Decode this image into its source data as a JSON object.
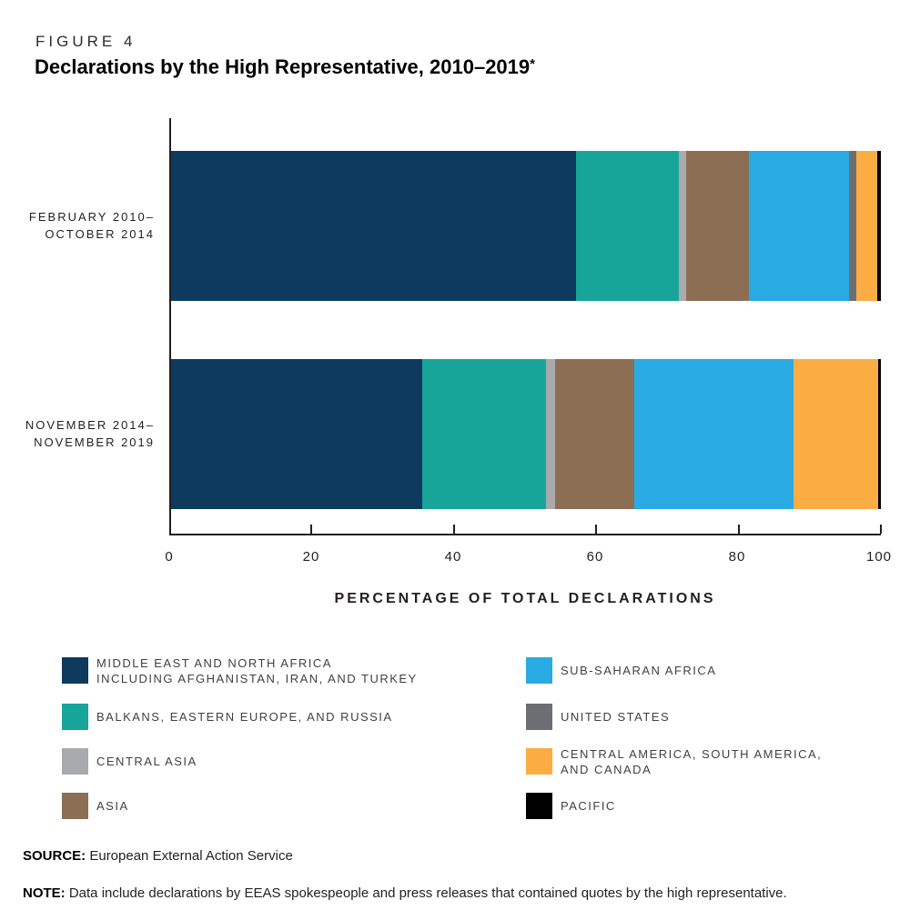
{
  "figure": {
    "label": "FIGURE 4",
    "title": "Declarations by the High Representative, 2010–2019",
    "title_star": "*"
  },
  "chart_data": {
    "type": "bar",
    "subtype": "horizontal-stacked-percentage",
    "title": "Declarations by the High Representative, 2010–2019*",
    "categories": [
      "FEBRUARY 2010–OCTOBER 2014",
      "NOVEMBER 2014–NOVEMBER 2019"
    ],
    "category_lines": [
      [
        "FEBRUARY 2010–",
        "OCTOBER 2014"
      ],
      [
        "NOVEMBER 2014–",
        "NOVEMBER 2019"
      ]
    ],
    "series": [
      {
        "name": "MIDDLE EAST AND NORTH AFRICA INCLUDING AFGHANISTAN, IRAN, AND TURKEY",
        "color": "#0e3a5d",
        "values": [
          57.0,
          35.4
        ]
      },
      {
        "name": "BALKANS, EASTERN EUROPE, AND RUSSIA",
        "color": "#17a59a",
        "values": [
          14.5,
          17.4
        ]
      },
      {
        "name": "CENTRAL ASIA",
        "color": "#a8aaad",
        "values": [
          1.1,
          1.3
        ]
      },
      {
        "name": "ASIA",
        "color": "#8b6e54",
        "values": [
          8.8,
          11.2
        ]
      },
      {
        "name": "SUB-SAHARAN AFRICA",
        "color": "#29aae2",
        "values": [
          14.1,
          22.4
        ]
      },
      {
        "name": "UNITED STATES",
        "color": "#6d6e71",
        "values": [
          1.0,
          0
        ]
      },
      {
        "name": "CENTRAL AMERICA, SOUTH AMERICA, AND CANADA",
        "color": "#fbad43",
        "values": [
          3.0,
          11.9
        ]
      },
      {
        "name": "PACIFIC",
        "color": "#000000",
        "values": [
          0.5,
          0.4
        ]
      }
    ],
    "xlabel": "PERCENTAGE OF TOTAL DECLARATIONS",
    "xlim": [
      0,
      100
    ],
    "xticks": [
      0,
      20,
      40,
      60,
      80,
      100
    ],
    "grid": false,
    "legend_position": "below"
  },
  "legend": {
    "columns": [
      [
        {
          "lines": [
            "MIDDLE EAST AND NORTH AFRICA",
            "INCLUDING AFGHANISTAN, IRAN, AND TURKEY"
          ],
          "color": "#0e3a5d"
        },
        {
          "lines": [
            "BALKANS, EASTERN EUROPE, AND RUSSIA"
          ],
          "color": "#17a59a"
        },
        {
          "lines": [
            "CENTRAL ASIA"
          ],
          "color": "#a8aaad"
        },
        {
          "lines": [
            "ASIA"
          ],
          "color": "#8b6e54"
        }
      ],
      [
        {
          "lines": [
            "SUB-SAHARAN AFRICA"
          ],
          "color": "#29aae2"
        },
        {
          "lines": [
            "UNITED STATES"
          ],
          "color": "#6d6e71"
        },
        {
          "lines": [
            "CENTRAL AMERICA, SOUTH AMERICA,",
            "AND CANADA"
          ],
          "color": "#fbad43"
        },
        {
          "lines": [
            "PACIFIC"
          ],
          "color": "#000000"
        }
      ]
    ]
  },
  "footer": {
    "source_label": "SOURCE:",
    "source_text": "European External Action Service",
    "note_label": "NOTE:",
    "note_text": "Data include declarations by EEAS spokespeople and press releases that contained quotes by the high representative."
  }
}
